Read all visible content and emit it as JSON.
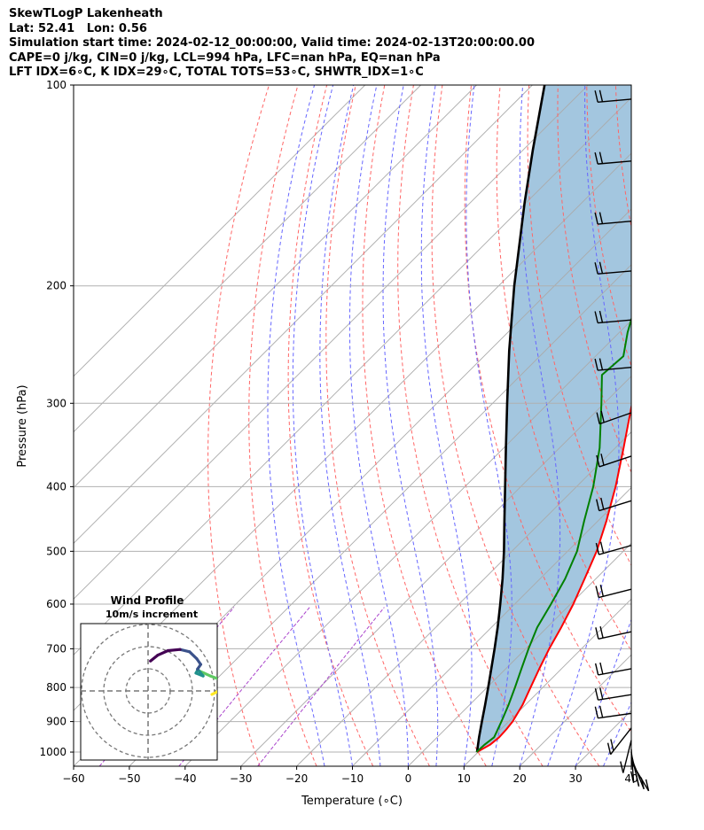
{
  "header": {
    "title": "SkewTLogP Lakenheath",
    "location": "Lat: 52.41   Lon: 0.56",
    "times": "Simulation start time: 2024-02-12_00:00:00, Valid time: 2024-02-13T20:00:00.00",
    "indices1": "CAPE=0 j/kg, CIN=0 j/kg, LCL=994 hPa, LFC=nan hPa, EQ=nan hPa",
    "indices2": "LFT IDX=6∘C, K IDX=29∘C, TOTAL TOTS=53∘C, SHWTR_IDX=1∘C"
  },
  "chart_data": {
    "type": "skewt",
    "xlabel": "Temperature (∘C)",
    "ylabel": "Pressure (hPa)",
    "xlim": [
      -60,
      40
    ],
    "ylim": [
      1050,
      100
    ],
    "x_ticks": [
      -60,
      -50,
      -40,
      -30,
      -20,
      -10,
      0,
      10,
      20,
      30,
      40
    ],
    "p_ticks": [
      100,
      200,
      300,
      400,
      500,
      600,
      700,
      800,
      900,
      1000
    ],
    "colors": {
      "temperature": "#ff0000",
      "dewpoint": "#008000",
      "parcel": "#000000",
      "shading": "#a3c6df",
      "dry_adiabat": "#ff6666",
      "moist_adiabat": "#6666ff",
      "mixing_ratio": "#aa44cc",
      "isotherm": "#aaaaaa"
    },
    "temperature": [
      {
        "p": 1000,
        "t": 9.8
      },
      {
        "p": 975,
        "t": 10.8
      },
      {
        "p": 950,
        "t": 11.1
      },
      {
        "p": 925,
        "t": 11.0
      },
      {
        "p": 900,
        "t": 10.7
      },
      {
        "p": 850,
        "t": 9.5
      },
      {
        "p": 800,
        "t": 7.8
      },
      {
        "p": 750,
        "t": 6.0
      },
      {
        "p": 700,
        "t": 4.2
      },
      {
        "p": 650,
        "t": 2.5
      },
      {
        "p": 600,
        "t": 0.5
      },
      {
        "p": 550,
        "t": -2.0
      },
      {
        "p": 500,
        "t": -4.8
      },
      {
        "p": 450,
        "t": -8.5
      },
      {
        "p": 400,
        "t": -13.0
      },
      {
        "p": 350,
        "t": -18.5
      },
      {
        "p": 300,
        "t": -25.0
      },
      {
        "p": 272,
        "t": -29.5
      },
      {
        "p": 250,
        "t": -29.6
      },
      {
        "p": 235,
        "t": -30.0
      },
      {
        "p": 200,
        "t": -35.0
      },
      {
        "p": 175,
        "t": -40.0
      },
      {
        "p": 150,
        "t": -46.5
      },
      {
        "p": 125,
        "t": -52.5
      },
      {
        "p": 110,
        "t": -58.0
      },
      {
        "p": 100,
        "t": -62.0
      }
    ],
    "dewpoint": [
      {
        "p": 1000,
        "t": 9.7
      },
      {
        "p": 975,
        "t": 9.8
      },
      {
        "p": 950,
        "t": 10.2
      },
      {
        "p": 900,
        "t": 8.7
      },
      {
        "p": 850,
        "t": 7.0
      },
      {
        "p": 800,
        "t": 5.0
      },
      {
        "p": 750,
        "t": 2.8
      },
      {
        "p": 700,
        "t": 0.5
      },
      {
        "p": 650,
        "t": -1.8
      },
      {
        "p": 600,
        "t": -3.5
      },
      {
        "p": 550,
        "t": -5.5
      },
      {
        "p": 500,
        "t": -8.3
      },
      {
        "p": 450,
        "t": -12.5
      },
      {
        "p": 400,
        "t": -17.0
      },
      {
        "p": 350,
        "t": -22.8
      },
      {
        "p": 300,
        "t": -30.5
      },
      {
        "p": 272,
        "t": -35.5
      },
      {
        "p": 255,
        "t": -35.0
      },
      {
        "p": 235,
        "t": -38.5
      },
      {
        "p": 200,
        "t": -44.5
      },
      {
        "p": 180,
        "t": -51.0
      },
      {
        "p": 170,
        "t": -53.5
      },
      {
        "p": 150,
        "t": -57.5
      },
      {
        "p": 125,
        "t": -63.5
      },
      {
        "p": 100,
        "t": -72.5
      }
    ],
    "parcel": [
      {
        "p": 1000,
        "t": 9.8
      },
      {
        "p": 950,
        "t": 7.5
      },
      {
        "p": 900,
        "t": 5.2
      },
      {
        "p": 850,
        "t": 2.8
      },
      {
        "p": 800,
        "t": 0.2
      },
      {
        "p": 750,
        "t": -2.6
      },
      {
        "p": 700,
        "t": -5.6
      },
      {
        "p": 650,
        "t": -8.9
      },
      {
        "p": 600,
        "t": -12.6
      },
      {
        "p": 550,
        "t": -16.7
      },
      {
        "p": 500,
        "t": -21.4
      },
      {
        "p": 450,
        "t": -26.8
      },
      {
        "p": 400,
        "t": -32.8
      },
      {
        "p": 350,
        "t": -39.6
      },
      {
        "p": 300,
        "t": -47.4
      },
      {
        "p": 250,
        "t": -56.5
      },
      {
        "p": 200,
        "t": -67.2
      },
      {
        "p": 150,
        "t": -80.3
      },
      {
        "p": 125,
        "t": -88.3
      },
      {
        "p": 100,
        "t": -97.8
      }
    ],
    "wind_barb_pressures": [
      105,
      130,
      160,
      190,
      225,
      265,
      310,
      360,
      420,
      490,
      570,
      660,
      750,
      820,
      875,
      920,
      960,
      990,
      1005,
      1020,
      1035
    ],
    "hodograph": {
      "title": "Wind Profile",
      "subtitle": "10m/s increment",
      "colors": [
        "#fde725",
        "#5ec962",
        "#21918c",
        "#3b528b",
        "#440154"
      ],
      "points": [
        {
          "u": 8.0,
          "v": -0.6
        },
        {
          "u": 8.6,
          "v": -0.2
        },
        {
          "u": 9.2,
          "v": 0.4
        },
        {
          "u": 9.6,
          "v": 1.0
        },
        {
          "u": 9.2,
          "v": 1.7
        },
        {
          "u": 8.6,
          "v": 2.2
        },
        {
          "u": 7.8,
          "v": 2.6
        },
        {
          "u": 7.0,
          "v": 3.1
        },
        {
          "u": 6.2,
          "v": 3.6
        },
        {
          "u": 6.0,
          "v": 3.1
        },
        {
          "u": 6.9,
          "v": 2.6
        },
        {
          "u": 6.2,
          "v": 3.8
        },
        {
          "u": 6.6,
          "v": 4.6
        },
        {
          "u": 6.1,
          "v": 5.6
        },
        {
          "u": 5.2,
          "v": 6.8
        },
        {
          "u": 4.0,
          "v": 7.2
        },
        {
          "u": 2.5,
          "v": 7.0
        },
        {
          "u": 1.2,
          "v": 6.2
        },
        {
          "u": 0.3,
          "v": 5.2
        }
      ]
    }
  }
}
